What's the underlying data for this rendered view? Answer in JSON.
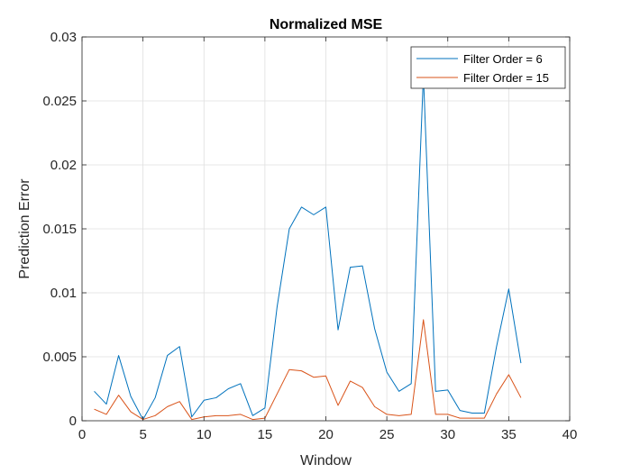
{
  "chart_data": {
    "type": "line",
    "title": "Normalized MSE",
    "xlabel": "Window",
    "ylabel": "Prediction Error",
    "xlim": [
      0,
      40
    ],
    "ylim": [
      0,
      0.03
    ],
    "xticks": [
      0,
      5,
      10,
      15,
      20,
      25,
      30,
      35,
      40
    ],
    "xtick_labels": [
      "0",
      "5",
      "10",
      "15",
      "20",
      "25",
      "30",
      "35",
      "40"
    ],
    "yticks": [
      0,
      0.005,
      0.01,
      0.015,
      0.02,
      0.025,
      0.03
    ],
    "ytick_labels": [
      "0",
      "0.005",
      "0.01",
      "0.015",
      "0.02",
      "0.025",
      "0.03"
    ],
    "grid": true,
    "legend_position": "top-right",
    "x": [
      1,
      2,
      3,
      4,
      5,
      6,
      7,
      8,
      9,
      10,
      11,
      12,
      13,
      14,
      15,
      16,
      17,
      18,
      19,
      20,
      21,
      22,
      23,
      24,
      25,
      26,
      27,
      28,
      29,
      30,
      31,
      32,
      33,
      34,
      35,
      36
    ],
    "series": [
      {
        "name": "Filter Order = 6",
        "color": "#0072BD",
        "values": [
          0.0023,
          0.0013,
          0.0051,
          0.0019,
          0.0001,
          0.0018,
          0.0051,
          0.0058,
          0.0003,
          0.0016,
          0.0018,
          0.0025,
          0.0029,
          0.0004,
          0.001,
          0.0089,
          0.015,
          0.0167,
          0.0161,
          0.0167,
          0.0071,
          0.012,
          0.0121,
          0.0072,
          0.0038,
          0.0023,
          0.0029,
          0.027,
          0.0023,
          0.0024,
          0.0008,
          0.0006,
          0.0006,
          0.0058,
          0.0103,
          0.0045
        ]
      },
      {
        "name": "Filter Order = 15",
        "color": "#D95319",
        "values": [
          0.0009,
          0.0005,
          0.002,
          0.0007,
          0.0001,
          0.0004,
          0.0011,
          0.0015,
          0.0001,
          0.0003,
          0.0004,
          0.0004,
          0.0005,
          0.0001,
          0.0002,
          0.0021,
          0.004,
          0.0039,
          0.0034,
          0.0035,
          0.0012,
          0.0031,
          0.0026,
          0.0011,
          0.0005,
          0.0004,
          0.0005,
          0.0079,
          0.0005,
          0.0005,
          0.0002,
          0.0002,
          0.0002,
          0.0021,
          0.0036,
          0.0018
        ]
      }
    ]
  }
}
